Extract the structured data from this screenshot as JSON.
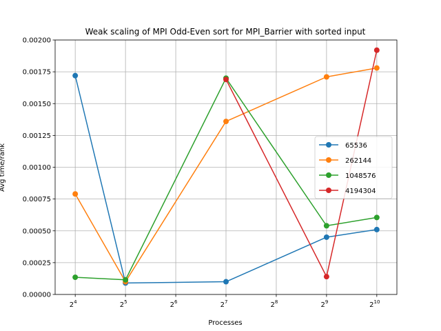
{
  "chart_data": {
    "type": "line",
    "title": "Weak scaling of MPI Odd-Even sort for MPI_Barrier with sorted input",
    "xlabel": "Processes",
    "ylabel": "Avg time/rank",
    "x_scale": "log2",
    "x": [
      16,
      32,
      128,
      512,
      1024
    ],
    "x_tick_base": "2",
    "x_tick_exponents": [
      "4",
      "5",
      "6",
      "7",
      "8",
      "9",
      "10"
    ],
    "y_ticks": [
      "0.00000",
      "0.00025",
      "0.00050",
      "0.00075",
      "0.00100",
      "0.00125",
      "0.00150",
      "0.00175",
      "0.00200"
    ],
    "ylim": [
      0,
      0.002
    ],
    "grid": true,
    "legend_position": "center-right",
    "series": [
      {
        "name": "65536",
        "color": "#1f77b4",
        "values": [
          0.00172,
          9e-05,
          0.0001,
          0.00045,
          0.00051
        ]
      },
      {
        "name": "262144",
        "color": "#ff7f0e",
        "values": [
          0.00079,
          0.0001,
          0.00136,
          0.00171,
          0.00178
        ]
      },
      {
        "name": "1048576",
        "color": "#2ca02c",
        "values": [
          0.000135,
          0.000115,
          0.0017,
          0.00054,
          0.000605
        ]
      },
      {
        "name": "4194304",
        "color": "#d62728",
        "values": [
          null,
          null,
          0.00169,
          0.00014,
          0.00192
        ]
      }
    ]
  }
}
